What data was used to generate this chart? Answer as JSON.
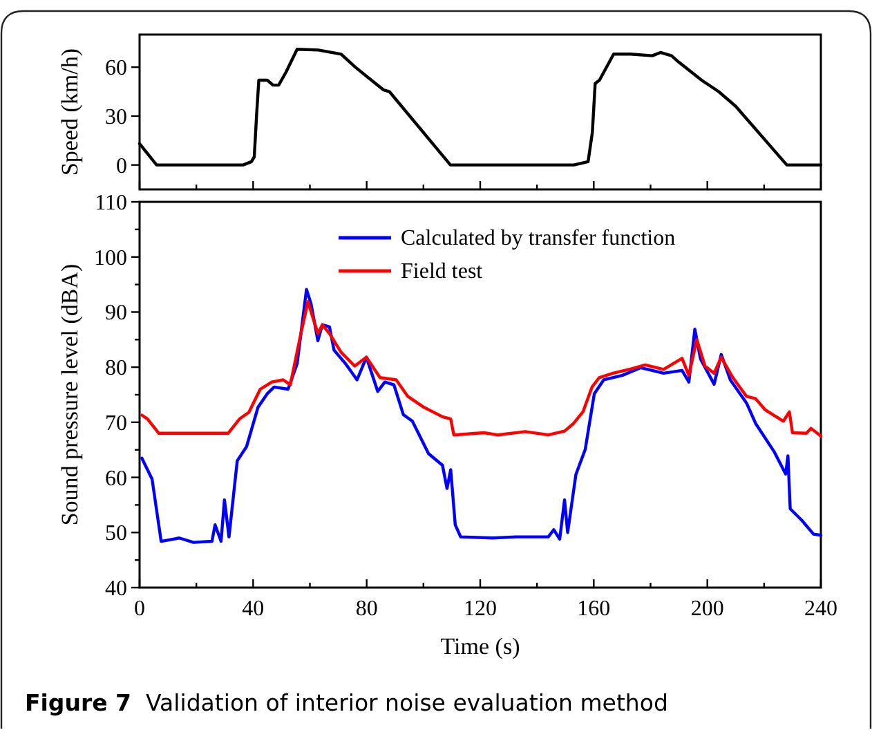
{
  "chart_data": [
    {
      "type": "line",
      "ylabel": "Speed (km/h)",
      "xlim": [
        0,
        240
      ],
      "xticks": [
        {
          "value": 0,
          "label": null
        },
        {
          "value": 20,
          "label": null
        },
        {
          "value": 40,
          "label": null
        },
        {
          "value": 60,
          "label": null
        },
        {
          "value": 80,
          "label": null
        },
        {
          "value": 100,
          "label": null
        },
        {
          "value": 120,
          "label": null
        },
        {
          "value": 140,
          "label": null
        },
        {
          "value": 160,
          "label": null
        },
        {
          "value": 180,
          "label": null
        },
        {
          "value": 200,
          "label": null
        },
        {
          "value": 220,
          "label": null
        },
        {
          "value": 240,
          "label": null
        }
      ],
      "ylim": [
        -15,
        80
      ],
      "yticks": [
        0,
        30,
        60
      ],
      "tick_labels": "y",
      "grid": false,
      "legend": false,
      "marker": "none",
      "line_style": "solid",
      "series": [
        {
          "color": "#000000",
          "x": [
            0,
            6,
            36.5,
            39.4,
            40.4,
            41.2,
            42,
            45,
            47,
            49,
            51.6,
            55.5,
            63,
            71,
            76,
            81,
            86,
            88,
            109.5,
            153,
            158,
            159.5,
            160.5,
            162,
            167,
            173,
            180.6,
            183.5,
            187.4,
            190,
            198,
            204,
            210,
            228,
            240
          ],
          "values": [
            13,
            0,
            0,
            2,
            5,
            30,
            52,
            52,
            49,
            49,
            57,
            71,
            70.5,
            68,
            60,
            53,
            46,
            45,
            0,
            0,
            2,
            20,
            50,
            52,
            68,
            68,
            67,
            69,
            67,
            63,
            52,
            45,
            36,
            0,
            0
          ]
        }
      ]
    },
    {
      "type": "line",
      "xlabel": "Time (s)",
      "ylabel": "Sound pressure level (dBA)",
      "xlim": [
        0,
        240
      ],
      "xticks": [
        0,
        {
          "value": 20,
          "label": null
        },
        40,
        {
          "value": 60,
          "label": null
        },
        80,
        {
          "value": 100,
          "label": null
        },
        120,
        {
          "value": 140,
          "label": null
        },
        160,
        {
          "value": 180,
          "label": null
        },
        200,
        {
          "value": 220,
          "label": null
        },
        240
      ],
      "ylim": [
        40,
        110
      ],
      "yticks": [
        40,
        {
          "value": 45,
          "label": null
        },
        50,
        {
          "value": 55,
          "label": null
        },
        60,
        {
          "value": 65,
          "label": null
        },
        70,
        {
          "value": 75,
          "label": null
        },
        80,
        {
          "value": 85,
          "label": null
        },
        90,
        {
          "value": 95,
          "label": null
        },
        100,
        {
          "value": 105,
          "label": null
        },
        110
      ],
      "grid": false,
      "legend": "top",
      "marker": "none",
      "line_style": "solid",
      "annotations": [
        "Figure 7  Validation of interior noise evaluation method"
      ],
      "series": [
        {
          "name": "Calculated by transfer function",
          "color": "#0000ff",
          "x": [
            0.8,
            4.4,
            7.6,
            14,
            19,
            25.5,
            26.6,
            28.7,
            29.9,
            31.5,
            34.4,
            37.7,
            41.7,
            45,
            47.4,
            52.3,
            55.5,
            58.8,
            60.4,
            62.8,
            64.4,
            66.9,
            68.5,
            72.6,
            76.6,
            79.9,
            83.9,
            86.4,
            89.6,
            92.9,
            96.1,
            101.8,
            106.7,
            108.3,
            109.6,
            111.2,
            113.1,
            124.5,
            132.6,
            144,
            145.9,
            148,
            149.7,
            150.8,
            153.7,
            157,
            160.2,
            163.5,
            170,
            176.5,
            184.6,
            191.1,
            193.5,
            195.6,
            197.6,
            202.4,
            204.9,
            208.1,
            213.8,
            217,
            223.5,
            227.6,
            228.4,
            229.2,
            233.3,
            237.4,
            240
          ],
          "values": [
            63.5,
            59.7,
            48.4,
            49,
            48.2,
            48.4,
            51.4,
            48.4,
            55.9,
            49.2,
            63,
            65.6,
            72.7,
            75.2,
            76.4,
            76,
            80.6,
            94.1,
            91.5,
            84.8,
            87.7,
            87.3,
            83.1,
            80.6,
            77.7,
            81.8,
            75.6,
            77.3,
            76.8,
            71.4,
            70.2,
            64.3,
            62.2,
            58,
            61.4,
            51.4,
            49.2,
            49,
            49.2,
            49.2,
            50.5,
            48.8,
            55.9,
            50,
            60.5,
            65.1,
            75.2,
            77.7,
            78.5,
            79.9,
            78.9,
            79.4,
            77.3,
            86.9,
            81.5,
            76.9,
            82.3,
            77.7,
            73.5,
            69.8,
            64.7,
            60.6,
            63.9,
            54.3,
            52.2,
            49.7,
            49.5
          ]
        },
        {
          "name": "Field test",
          "color": "#ff0000",
          "x": [
            0.8,
            2.8,
            6.8,
            19,
            31.2,
            35.2,
            38.5,
            42.5,
            46.6,
            50.6,
            53.1,
            56.3,
            59.3,
            62.8,
            64.4,
            66.9,
            71,
            75.8,
            79.9,
            84.7,
            90.4,
            94.5,
            100.2,
            106.7,
            109.6,
            110.7,
            121.3,
            126.1,
            135.9,
            144,
            149.7,
            152.9,
            156.2,
            159.4,
            161.9,
            166.8,
            173.2,
            178.1,
            184.6,
            191.1,
            193.5,
            196.3,
            199.2,
            202.4,
            204.9,
            209,
            213.8,
            217,
            220.3,
            226.8,
            228.9,
            230,
            234.9,
            236.5,
            240
          ],
          "values": [
            71.3,
            70.6,
            68,
            68,
            68,
            70.6,
            71.8,
            76,
            77.3,
            77.7,
            76.8,
            84.8,
            91.9,
            86.1,
            87.7,
            86.1,
            82.7,
            80.2,
            81.8,
            78.1,
            77.7,
            74.7,
            72.7,
            71,
            70.6,
            67.7,
            68.1,
            67.7,
            68.3,
            67.7,
            68.4,
            69.8,
            71.9,
            76.4,
            78.1,
            78.9,
            79.7,
            80.4,
            79.6,
            81.6,
            78.5,
            85,
            80.2,
            78.9,
            81.8,
            78.1,
            74.7,
            74.3,
            72.3,
            70.2,
            71.9,
            68.1,
            68,
            68.9,
            67.5
          ]
        }
      ]
    }
  ]
}
